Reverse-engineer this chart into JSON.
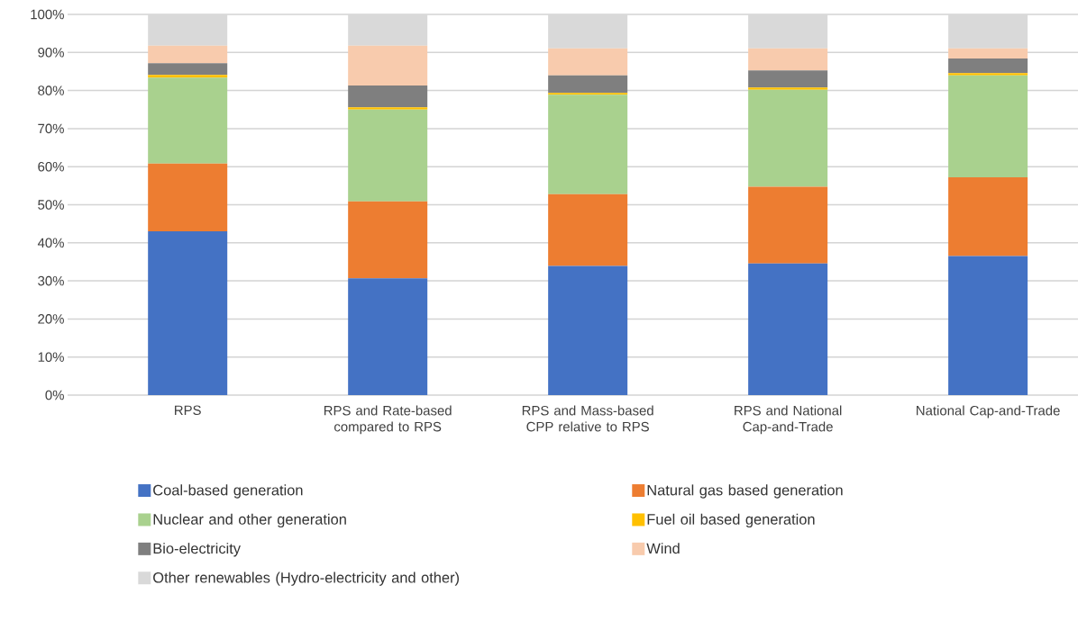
{
  "chart_data": {
    "type": "bar",
    "stacked": true,
    "categories": [
      "RPS",
      "RPS and Rate-based compared to RPS",
      "RPS  and Mass-based CPP relative to RPS",
      "RPS and National Cap-and-Trade",
      "National Cap-and-Trade"
    ],
    "series": [
      {
        "name": "Coal-based generation",
        "color": "#4472c4",
        "values": [
          43.0,
          30.7,
          33.9,
          34.6,
          36.5
        ]
      },
      {
        "name": "Natural gas based generation",
        "color": "#ed7d31",
        "values": [
          17.8,
          20.2,
          18.9,
          20.1,
          20.7
        ]
      },
      {
        "name": "Nuclear and other generation",
        "color": "#a9d18e",
        "values": [
          22.6,
          24.1,
          26.1,
          25.5,
          26.8
        ]
      },
      {
        "name": "Fuel oil based generation",
        "color": "#ffc000",
        "values": [
          0.7,
          0.6,
          0.5,
          0.6,
          0.6
        ]
      },
      {
        "name": "Bio-electricity",
        "color": "#7f7f7f",
        "values": [
          3.1,
          5.7,
          4.6,
          4.5,
          3.8
        ]
      },
      {
        "name": "Wind",
        "color": "#f8cbad",
        "values": [
          4.6,
          10.5,
          7.1,
          5.8,
          2.7
        ]
      },
      {
        "name": "Other renewables (Hydro-electricity and other)",
        "color": "#d9d9d9",
        "values": [
          8.2,
          8.2,
          8.9,
          8.9,
          8.9
        ]
      }
    ],
    "ylim": [
      0,
      100
    ],
    "yticks": [
      {
        "value": 0,
        "label": "0%"
      },
      {
        "value": 10,
        "label": "10%"
      },
      {
        "value": 20,
        "label": "20%"
      },
      {
        "value": 30,
        "label": "30%"
      },
      {
        "value": 40,
        "label": "40%"
      },
      {
        "value": 50,
        "label": "50%"
      },
      {
        "value": 60,
        "label": "60%"
      },
      {
        "value": 70,
        "label": "70%"
      },
      {
        "value": 80,
        "label": "80%"
      },
      {
        "value": 90,
        "label": "90%"
      },
      {
        "value": 100,
        "label": "100%"
      }
    ],
    "grid": "y",
    "legend": "bottom"
  }
}
